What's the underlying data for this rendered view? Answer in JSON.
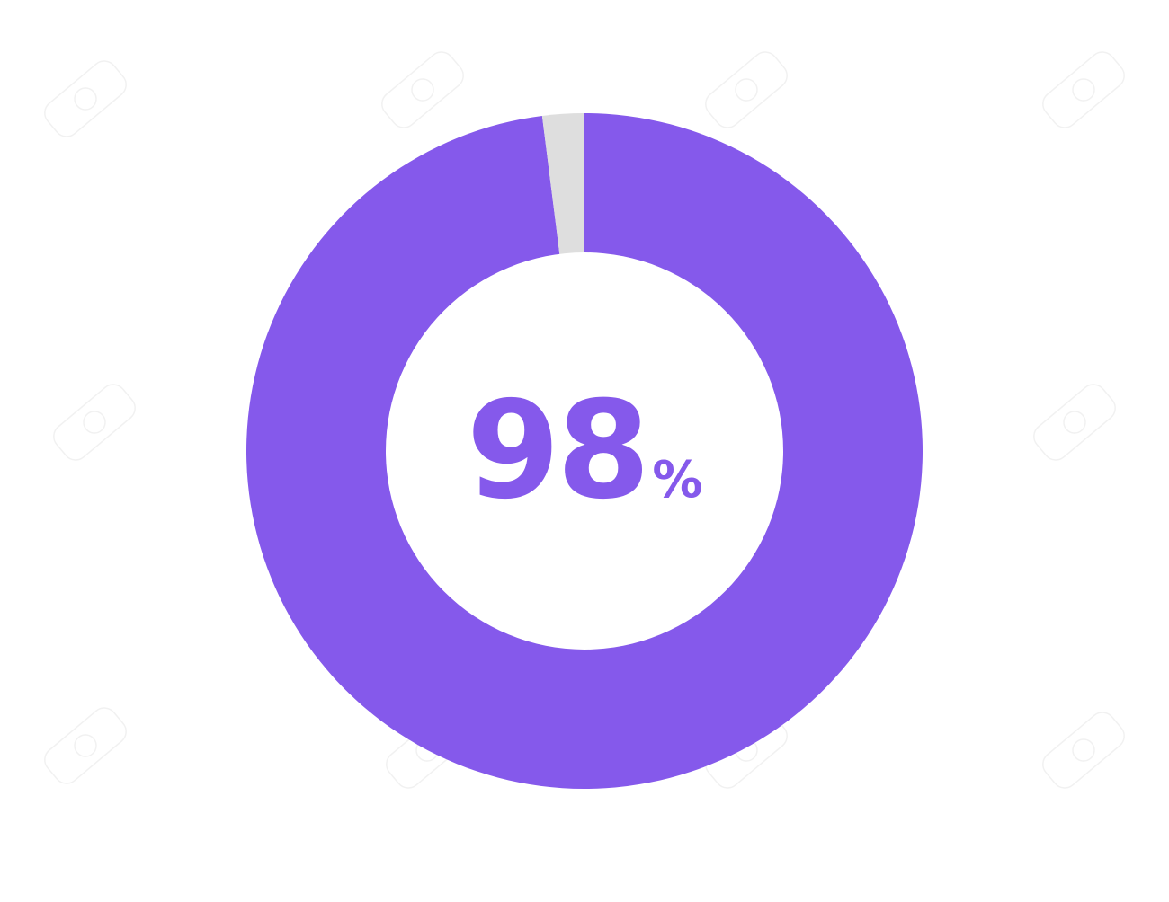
{
  "chart_data": {
    "type": "pie",
    "variant": "donut",
    "values": [
      98,
      2
    ],
    "colors": [
      "#8559eb",
      "#dedede"
    ],
    "center_label": {
      "value": "98",
      "unit": "%"
    },
    "text_color": "#8559eb"
  },
  "watermark": {
    "text": "123RF"
  }
}
